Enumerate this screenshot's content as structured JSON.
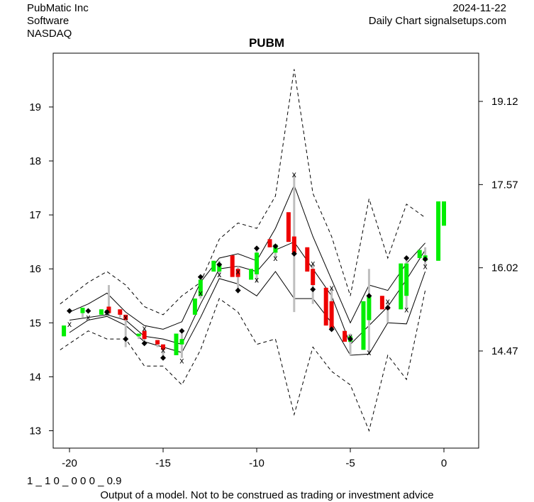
{
  "header": {
    "company": "PubMatic Inc",
    "sector": "Software",
    "exchange": "NASDAQ",
    "date": "2024-11-22",
    "source": "Daily Chart signalsetups.com"
  },
  "footer": {
    "code": "1 _ 1 0 _ 0 0 0 _ 0.9",
    "disclaimer": "Output of a model. Not to be construed as trading or investment advice"
  },
  "chart_data": {
    "type": "candlestick",
    "title": "PUBM",
    "xlim": [
      -21,
      1
    ],
    "ylim": [
      12.7,
      19.9
    ],
    "x_ticks": [
      -20,
      -15,
      -10,
      -5,
      0
    ],
    "y_ticks_left": [
      13,
      14,
      15,
      16,
      17,
      18,
      19
    ],
    "y_ticks_right": [
      "14.47",
      "16.02",
      "17.57",
      "19.12"
    ],
    "colors": {
      "up": "#00ee00",
      "down": "#ee0000",
      "wick": "#bebebe",
      "band": "#000000"
    },
    "candles": [
      {
        "x": -20.3,
        "open": 14.75,
        "close": 14.95,
        "high": 14.95,
        "low": 14.75
      },
      {
        "x": -19.3,
        "open": 15.18,
        "close": 15.28,
        "high": 15.28,
        "low": 15.1
      },
      {
        "x": -18.3,
        "open": 15.15,
        "close": 15.25,
        "high": 15.25,
        "low": 15.15
      },
      {
        "x": -17.9,
        "open": 15.3,
        "close": 15.18,
        "high": 15.7,
        "low": 15.15
      },
      {
        "x": -17.3,
        "open": 15.25,
        "close": 15.15,
        "high": 15.25,
        "low": 15.1
      },
      {
        "x": -17.0,
        "open": 15.15,
        "close": 15.05,
        "high": 15.15,
        "low": 14.55
      },
      {
        "x": -16.3,
        "open": 14.75,
        "close": 14.8,
        "high": 14.8,
        "low": 14.7
      },
      {
        "x": -16.0,
        "open": 14.85,
        "close": 14.7,
        "high": 14.9,
        "low": 14.6
      },
      {
        "x": -15.3,
        "open": 14.68,
        "close": 14.6,
        "high": 14.68,
        "low": 14.55
      },
      {
        "x": -15.0,
        "open": 14.6,
        "close": 14.5,
        "high": 14.6,
        "low": 14.35
      },
      {
        "x": -14.3,
        "open": 14.4,
        "close": 14.8,
        "high": 14.8,
        "low": 14.4
      },
      {
        "x": -14.0,
        "open": 14.6,
        "close": 14.7,
        "high": 14.8,
        "low": 14.35
      },
      {
        "x": -13.3,
        "open": 15.15,
        "close": 15.45,
        "high": 15.45,
        "low": 15.15
      },
      {
        "x": -13.0,
        "open": 15.5,
        "close": 15.8,
        "high": 15.85,
        "low": 15.45
      },
      {
        "x": -12.3,
        "open": 15.95,
        "close": 16.15,
        "high": 16.15,
        "low": 15.95
      },
      {
        "x": -12.0,
        "open": 15.95,
        "close": 16.1,
        "high": 16.15,
        "low": 15.85
      },
      {
        "x": -11.3,
        "open": 16.25,
        "close": 15.85,
        "high": 16.25,
        "low": 15.85
      },
      {
        "x": -11.0,
        "open": 16.0,
        "close": 15.85,
        "high": 16.05,
        "low": 15.55
      },
      {
        "x": -10.3,
        "open": 15.8,
        "close": 16.0,
        "high": 16.0,
        "low": 15.8
      },
      {
        "x": -10.0,
        "open": 15.9,
        "close": 16.3,
        "high": 16.35,
        "low": 15.75
      },
      {
        "x": -9.3,
        "open": 16.55,
        "close": 16.4,
        "high": 16.55,
        "low": 16.4
      },
      {
        "x": -9.0,
        "open": 16.3,
        "close": 16.45,
        "high": 16.45,
        "low": 16.2
      },
      {
        "x": -8.3,
        "open": 17.05,
        "close": 16.5,
        "high": 17.05,
        "low": 16.5
      },
      {
        "x": -8.0,
        "open": 16.6,
        "close": 16.3,
        "high": 17.75,
        "low": 15.2
      },
      {
        "x": -7.3,
        "open": 16.4,
        "close": 15.95,
        "high": 16.4,
        "low": 15.95
      },
      {
        "x": -7.0,
        "open": 16.0,
        "close": 15.7,
        "high": 16.1,
        "low": 15.35
      },
      {
        "x": -6.3,
        "open": 15.65,
        "close": 14.95,
        "high": 15.65,
        "low": 14.95
      },
      {
        "x": -6.0,
        "open": 15.4,
        "close": 14.9,
        "high": 15.65,
        "low": 14.85
      },
      {
        "x": -5.3,
        "open": 14.85,
        "close": 14.65,
        "high": 14.85,
        "low": 14.65
      },
      {
        "x": -5.0,
        "open": 14.65,
        "close": 14.75,
        "high": 14.8,
        "low": 14.4
      },
      {
        "x": -4.3,
        "open": 14.5,
        "close": 15.4,
        "high": 15.4,
        "low": 14.5
      },
      {
        "x": -4.0,
        "open": 15.05,
        "close": 15.5,
        "high": 16.0,
        "low": 14.45
      },
      {
        "x": -3.3,
        "open": 15.5,
        "close": 15.25,
        "high": 15.5,
        "low": 15.25
      },
      {
        "x": -3.0,
        "open": 15.3,
        "close": 15.25,
        "high": 15.4,
        "low": 15.0
      },
      {
        "x": -2.3,
        "open": 15.25,
        "close": 16.1,
        "high": 16.1,
        "low": 15.25
      },
      {
        "x": -2.0,
        "open": 15.5,
        "close": 16.1,
        "high": 16.2,
        "low": 15.25
      },
      {
        "x": -1.3,
        "open": 16.2,
        "close": 16.35,
        "high": 16.35,
        "low": 16.2
      },
      {
        "x": -1.0,
        "open": 16.15,
        "close": 16.25,
        "high": 16.4,
        "low": 16.05
      },
      {
        "x": -0.3,
        "open": 16.15,
        "close": 17.25,
        "high": 17.25,
        "low": 16.15
      },
      {
        "x": 0.0,
        "open": 16.8,
        "close": 17.25,
        "high": 17.25,
        "low": 16.8
      }
    ],
    "markers_x": [
      {
        "x": -20,
        "y": 14.98
      },
      {
        "x": -19,
        "y": 15.1
      },
      {
        "x": -18,
        "y": 15.2
      },
      {
        "x": -17,
        "y": 15.1
      },
      {
        "x": -16,
        "y": 14.9
      },
      {
        "x": -15,
        "y": 14.5
      },
      {
        "x": -14,
        "y": 14.3
      },
      {
        "x": -13,
        "y": 15.55
      },
      {
        "x": -12,
        "y": 15.9
      },
      {
        "x": -11,
        "y": 15.95
      },
      {
        "x": -10,
        "y": 15.8
      },
      {
        "x": -9,
        "y": 16.2
      },
      {
        "x": -8,
        "y": 17.75
      },
      {
        "x": -7,
        "y": 16.1
      },
      {
        "x": -6,
        "y": 15.65
      },
      {
        "x": -5,
        "y": 14.75
      },
      {
        "x": -4,
        "y": 14.45
      },
      {
        "x": -3,
        "y": 15.4
      },
      {
        "x": -2,
        "y": 15.25
      },
      {
        "x": -1,
        "y": 16.05
      }
    ],
    "markers_diamond": [
      {
        "x": -20,
        "y": 15.22
      },
      {
        "x": -19,
        "y": 15.22
      },
      {
        "x": -18,
        "y": 15.2
      },
      {
        "x": -17,
        "y": 14.7
      },
      {
        "x": -16,
        "y": 14.62
      },
      {
        "x": -15,
        "y": 14.35
      },
      {
        "x": -14,
        "y": 14.85
      },
      {
        "x": -13,
        "y": 15.85
      },
      {
        "x": -12,
        "y": 16.08
      },
      {
        "x": -11,
        "y": 15.6
      },
      {
        "x": -10,
        "y": 16.38
      },
      {
        "x": -9,
        "y": 16.42
      },
      {
        "x": -8,
        "y": 16.28
      },
      {
        "x": -7,
        "y": 15.62
      },
      {
        "x": -6,
        "y": 14.88
      },
      {
        "x": -5,
        "y": 14.7
      },
      {
        "x": -4,
        "y": 15.5
      },
      {
        "x": -3,
        "y": 15.28
      },
      {
        "x": -2,
        "y": 16.2
      },
      {
        "x": -1,
        "y": 16.18
      }
    ],
    "band_mid": [
      {
        "x": -20,
        "y": 15.05
      },
      {
        "x": -19,
        "y": 15.1
      },
      {
        "x": -18,
        "y": 15.15
      },
      {
        "x": -17,
        "y": 15.05
      },
      {
        "x": -16,
        "y": 14.75
      },
      {
        "x": -15,
        "y": 14.7
      },
      {
        "x": -14,
        "y": 14.6
      },
      {
        "x": -13,
        "y": 15.35
      },
      {
        "x": -12,
        "y": 16.0
      },
      {
        "x": -11,
        "y": 16.05
      },
      {
        "x": -10,
        "y": 15.95
      },
      {
        "x": -9,
        "y": 16.35
      },
      {
        "x": -8,
        "y": 16.5
      },
      {
        "x": -7,
        "y": 16.0
      },
      {
        "x": -6,
        "y": 15.5
      },
      {
        "x": -5,
        "y": 14.6
      },
      {
        "x": -4,
        "y": 14.95
      },
      {
        "x": -3,
        "y": 15.3
      },
      {
        "x": -2,
        "y": 15.8
      },
      {
        "x": -1,
        "y": 16.35
      }
    ],
    "band_upper": [
      {
        "x": -20,
        "y": 15.2
      },
      {
        "x": -19,
        "y": 15.35
      },
      {
        "x": -18,
        "y": 15.55
      },
      {
        "x": -17,
        "y": 15.2
      },
      {
        "x": -16,
        "y": 14.95
      },
      {
        "x": -15,
        "y": 14.88
      },
      {
        "x": -14,
        "y": 15.02
      },
      {
        "x": -13,
        "y": 15.75
      },
      {
        "x": -12,
        "y": 16.2
      },
      {
        "x": -11,
        "y": 16.28
      },
      {
        "x": -10,
        "y": 16.15
      },
      {
        "x": -9,
        "y": 16.75
      },
      {
        "x": -8,
        "y": 17.55
      },
      {
        "x": -7,
        "y": 16.6
      },
      {
        "x": -6,
        "y": 15.8
      },
      {
        "x": -5,
        "y": 15.0
      },
      {
        "x": -4,
        "y": 15.7
      },
      {
        "x": -3,
        "y": 15.6
      },
      {
        "x": -2,
        "y": 16.1
      },
      {
        "x": -1,
        "y": 16.48
      }
    ],
    "band_lower": [
      {
        "x": -20,
        "y": 14.82
      },
      {
        "x": -19,
        "y": 15.05
      },
      {
        "x": -18,
        "y": 15.12
      },
      {
        "x": -17,
        "y": 14.95
      },
      {
        "x": -16,
        "y": 14.65
      },
      {
        "x": -15,
        "y": 14.55
      },
      {
        "x": -14,
        "y": 14.45
      },
      {
        "x": -13,
        "y": 15.1
      },
      {
        "x": -12,
        "y": 15.82
      },
      {
        "x": -11,
        "y": 15.72
      },
      {
        "x": -10,
        "y": 15.5
      },
      {
        "x": -9,
        "y": 15.95
      },
      {
        "x": -8,
        "y": 15.45
      },
      {
        "x": -7,
        "y": 15.45
      },
      {
        "x": -6,
        "y": 15.0
      },
      {
        "x": -5,
        "y": 14.4
      },
      {
        "x": -4,
        "y": 14.42
      },
      {
        "x": -3,
        "y": 15.0
      },
      {
        "x": -2,
        "y": 14.98
      },
      {
        "x": -1,
        "y": 15.95
      }
    ],
    "dash_upper": [
      {
        "x": -20.5,
        "y": 15.35
      },
      {
        "x": -19,
        "y": 15.75
      },
      {
        "x": -18,
        "y": 15.95
      },
      {
        "x": -17,
        "y": 15.7
      },
      {
        "x": -16,
        "y": 15.3
      },
      {
        "x": -15,
        "y": 15.15
      },
      {
        "x": -14,
        "y": 15.5
      },
      {
        "x": -13,
        "y": 15.75
      },
      {
        "x": -12,
        "y": 16.55
      },
      {
        "x": -11,
        "y": 16.85
      },
      {
        "x": -10,
        "y": 16.75
      },
      {
        "x": -9,
        "y": 17.35
      },
      {
        "x": -8,
        "y": 19.7
      },
      {
        "x": -7,
        "y": 17.4
      },
      {
        "x": -6,
        "y": 16.6
      },
      {
        "x": -5,
        "y": 15.5
      },
      {
        "x": -4,
        "y": 17.3
      },
      {
        "x": -3,
        "y": 16.2
      },
      {
        "x": -2,
        "y": 17.2
      },
      {
        "x": -1,
        "y": 16.95
      }
    ],
    "dash_lower": [
      {
        "x": -20.5,
        "y": 14.5
      },
      {
        "x": -19,
        "y": 14.85
      },
      {
        "x": -18,
        "y": 14.7
      },
      {
        "x": -17,
        "y": 14.7
      },
      {
        "x": -16,
        "y": 14.2
      },
      {
        "x": -15,
        "y": 14.2
      },
      {
        "x": -14,
        "y": 13.85
      },
      {
        "x": -13,
        "y": 14.5
      },
      {
        "x": -12,
        "y": 15.45
      },
      {
        "x": -11,
        "y": 15.2
      },
      {
        "x": -10,
        "y": 14.6
      },
      {
        "x": -9,
        "y": 14.7
      },
      {
        "x": -8,
        "y": 13.3
      },
      {
        "x": -7,
        "y": 14.55
      },
      {
        "x": -6,
        "y": 14.1
      },
      {
        "x": -5,
        "y": 13.85
      },
      {
        "x": -4,
        "y": 13.0
      },
      {
        "x": -3,
        "y": 14.4
      },
      {
        "x": -2,
        "y": 13.95
      },
      {
        "x": -1,
        "y": 15.6
      }
    ]
  }
}
